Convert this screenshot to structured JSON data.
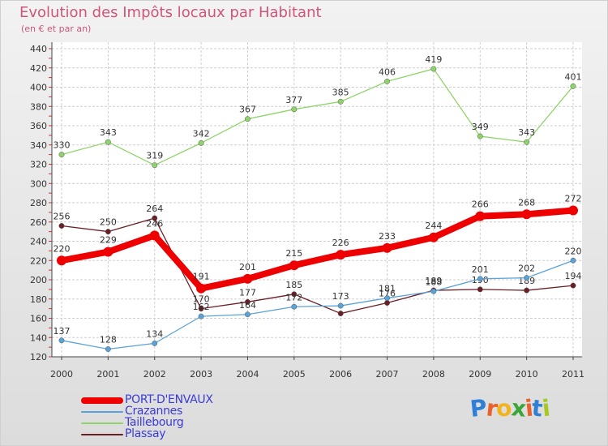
{
  "title": "Evolution des Impôts locaux par Habitant",
  "subtitle": "(en € et par an)",
  "logo": {
    "letters": [
      "P",
      "r",
      "o",
      "x",
      "i",
      "t",
      "i"
    ],
    "colors": [
      "#2f7fd6",
      "#e8632b",
      "#f3b31c",
      "#3aa63a",
      "#e8632b",
      "#2f7fd6",
      "#a5c91f"
    ]
  },
  "chart_data": {
    "type": "line",
    "x": [
      "2000",
      "2001",
      "2002",
      "2003",
      "2004",
      "2005",
      "2006",
      "2007",
      "2008",
      "2009",
      "2010",
      "2011"
    ],
    "ylim": [
      120,
      440
    ],
    "yticks": [
      "120",
      "140",
      "160",
      "180",
      "200",
      "220",
      "240",
      "260",
      "280",
      "300",
      "320",
      "340",
      "360",
      "380",
      "400",
      "420",
      "440"
    ],
    "grid": true,
    "legend_position": "bottom-left",
    "series": [
      {
        "name": "Taillebourg",
        "color": "#8fd46a",
        "values": [
          330,
          343,
          319,
          342,
          367,
          377,
          385,
          406,
          419,
          349,
          343,
          401
        ],
        "labels": [
          "330",
          "343",
          "319",
          "342",
          "367",
          "377",
          "385",
          "406",
          "419",
          "349",
          "343",
          "401"
        ]
      },
      {
        "name": "Plassay",
        "color": "#6b1e24",
        "values": [
          256,
          250,
          264,
          170,
          177,
          185,
          165,
          176,
          189,
          190,
          189,
          194
        ],
        "labels": [
          "256",
          "250",
          "264",
          "170",
          "177",
          "185",
          "",
          "176",
          "189",
          "190",
          "189",
          "194"
        ]
      },
      {
        "name": "Crazannes",
        "color": "#5aa3d8",
        "values": [
          137,
          128,
          134,
          162,
          164,
          172,
          173,
          181,
          188,
          201,
          202,
          220
        ],
        "labels": [
          "137",
          "128",
          "134",
          "162",
          "164",
          "172",
          "173",
          "181",
          "188",
          "201",
          "202",
          "220"
        ]
      },
      {
        "name": "PORT-D'ENVAUX",
        "color": "#ee0000",
        "values": [
          220,
          229,
          246,
          191,
          201,
          215,
          226,
          233,
          244,
          266,
          268,
          272
        ],
        "labels": [
          "220",
          "229",
          "246",
          "191",
          "201",
          "215",
          "226",
          "233",
          "244",
          "266",
          "268",
          "272"
        ]
      }
    ],
    "legend": [
      {
        "name": "PORT-D'ENVAUX",
        "color": "#ee0000"
      },
      {
        "name": "Crazannes",
        "color": "#5aa3d8"
      },
      {
        "name": "Taillebourg",
        "color": "#8fd46a"
      },
      {
        "name": "Plassay",
        "color": "#6b1e24"
      }
    ]
  }
}
